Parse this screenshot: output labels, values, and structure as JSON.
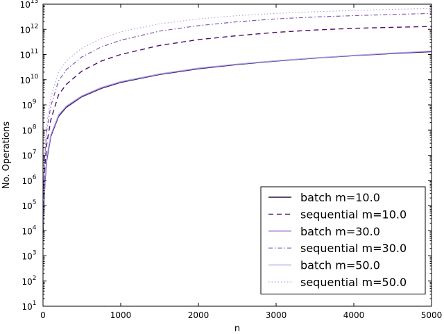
{
  "chart_data": {
    "type": "line",
    "title": "",
    "xlabel": "n",
    "ylabel": "No. Operations",
    "xlim": [
      0,
      5000
    ],
    "ylim": [
      10,
      10000000000000
    ],
    "yscale": "log",
    "grid": false,
    "legend_location": "lower-right",
    "x_ticks": [
      "0",
      "1000",
      "2000",
      "3000",
      "4000",
      "5000"
    ],
    "y_ticks": [
      {
        "base": "10",
        "exp": "1"
      },
      {
        "base": "10",
        "exp": "2"
      },
      {
        "base": "10",
        "exp": "3"
      },
      {
        "base": "10",
        "exp": "4"
      },
      {
        "base": "10",
        "exp": "5"
      },
      {
        "base": "10",
        "exp": "6"
      },
      {
        "base": "10",
        "exp": "7"
      },
      {
        "base": "10",
        "exp": "8"
      },
      {
        "base": "10",
        "exp": "9"
      },
      {
        "base": "10",
        "exp": "10"
      },
      {
        "base": "10",
        "exp": "11"
      },
      {
        "base": "10",
        "exp": "12"
      },
      {
        "base": "10",
        "exp": "13"
      }
    ],
    "x": [
      1,
      25,
      50,
      100,
      200,
      300,
      500,
      750,
      1000,
      1500,
      2000,
      2500,
      3000,
      3500,
      4000,
      4500,
      5000
    ],
    "series": [
      {
        "name": "batch m=10.0",
        "color": "#2a0a3a",
        "dash": "solid",
        "width": 1.4,
        "values": [
          8000,
          900000,
          7000000,
          55000000,
          350000000,
          800000000,
          2100000000,
          4500000000,
          7800000000,
          16000000000,
          27000000000,
          40000000000,
          55000000000,
          72000000000,
          90000000000,
          110000000000,
          130000000000
        ]
      },
      {
        "name": "sequential m=10.0",
        "color": "#4b0c6b",
        "dash": "7,5",
        "width": 1.4,
        "values": [
          100000,
          4000000,
          30000000,
          250000000,
          2500000000,
          6500000000,
          22000000000,
          55000000000,
          100000000000,
          230000000000,
          390000000000,
          560000000000,
          760000000000,
          940000000000,
          1100000000000,
          1200000000000,
          1300000000000
        ]
      },
      {
        "name": "batch m=30.0",
        "color": "#8a4fc0",
        "dash": "solid",
        "width": 1.2,
        "values": [
          10000,
          1050000,
          8000000,
          60000000,
          380000000,
          850000000,
          2200000000,
          4700000000,
          8100000000,
          16500000000,
          28000000000,
          41000000000,
          56000000000,
          73000000000,
          91000000000,
          112000000000,
          135000000000
        ]
      },
      {
        "name": "sequential m=30.0",
        "color": "#8256b0",
        "dash": "6,3,1.5,3",
        "width": 1.2,
        "values": [
          200000,
          12000000,
          100000000,
          900000000,
          9000000000,
          25000000000,
          80000000000,
          200000000000,
          370000000000,
          850000000000,
          1400000000000,
          2000000000000,
          2600000000000,
          3100000000000,
          3500000000000,
          3900000000000,
          4300000000000
        ]
      },
      {
        "name": "batch m=50.0",
        "color": "#a8a4ee",
        "dash": "solid",
        "width": 1.2,
        "values": [
          12000,
          1200000,
          9000000,
          65000000,
          400000000,
          900000000,
          2300000000,
          4900000000,
          8400000000,
          17000000000,
          29000000000,
          42000000000,
          57000000000,
          74000000000,
          93000000000,
          115000000000,
          138000000000
        ]
      },
      {
        "name": "sequential m=50.0",
        "color": "#b5a2dd",
        "dash": "1.5,3",
        "width": 1.2,
        "values": [
          300000,
          20000000,
          200000000,
          2000000000,
          20000000000,
          55000000000,
          180000000000,
          430000000000,
          800000000000,
          1650000000000,
          2600000000000,
          3500000000000,
          4300000000000,
          5000000000000,
          5600000000000,
          6200000000000,
          6800000000000
        ]
      }
    ]
  }
}
